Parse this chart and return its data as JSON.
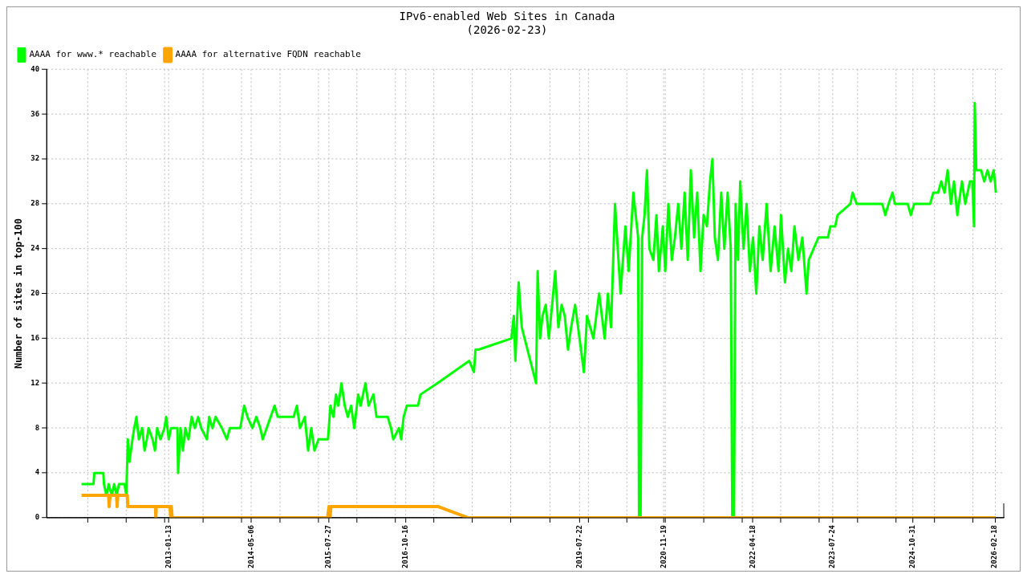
{
  "chart_data": {
    "type": "line",
    "title": "IPv6-enabled Web Sites in Canada",
    "subtitle": "(2026-02-23)",
    "ylabel": "Number of sites in top-100",
    "xlim": [
      "2011-02-06",
      "2026-04-10"
    ],
    "ylim": [
      0,
      40
    ],
    "yticks": [
      0,
      4,
      8,
      12,
      16,
      20,
      24,
      28,
      32,
      36,
      40
    ],
    "xticks": [
      {
        "value": "2011-09-30",
        "label": null
      },
      {
        "value": "2012-05-10",
        "label": null
      },
      {
        "value": "2012-12-19",
        "label": null
      },
      {
        "value": "2013-01-13",
        "label": "2013-01-13"
      },
      {
        "value": "2013-07-30",
        "label": null
      },
      {
        "value": "2014-03-10",
        "label": null
      },
      {
        "value": "2014-05-06",
        "label": "2014-05-06"
      },
      {
        "value": "2014-10-19",
        "label": null
      },
      {
        "value": "2015-05-30",
        "label": null
      },
      {
        "value": "2015-07-27",
        "label": "2015-07-27"
      },
      {
        "value": "2016-01-08",
        "label": null
      },
      {
        "value": "2016-08-18",
        "label": null
      },
      {
        "value": "2016-10-16",
        "label": "2016-10-16"
      },
      {
        "value": "2017-03-29",
        "label": null
      },
      {
        "value": "2017-11-07",
        "label": null
      },
      {
        "value": "2018-06-18",
        "label": null
      },
      {
        "value": "2019-01-27",
        "label": null
      },
      {
        "value": "2019-07-22",
        "label": "2019-07-22"
      },
      {
        "value": "2019-09-07",
        "label": null
      },
      {
        "value": "2020-04-17",
        "label": null
      },
      {
        "value": "2020-11-19",
        "label": "2020-11-19"
      },
      {
        "value": "2020-11-26",
        "label": null
      },
      {
        "value": "2021-07-07",
        "label": null
      },
      {
        "value": "2022-02-15",
        "label": null
      },
      {
        "value": "2022-04-18",
        "label": "2022-04-18"
      },
      {
        "value": "2022-09-26",
        "label": null
      },
      {
        "value": "2023-05-07",
        "label": null
      },
      {
        "value": "2023-07-24",
        "label": "2023-07-24"
      },
      {
        "value": "2023-12-16",
        "label": null
      },
      {
        "value": "2024-07-26",
        "label": null
      },
      {
        "value": "2024-10-31",
        "label": "2024-10-31"
      },
      {
        "value": "2025-03-06",
        "label": null
      },
      {
        "value": "2025-10-15",
        "label": null
      },
      {
        "value": "2026-02-18",
        "label": "2026-02-18"
      }
    ],
    "grid": true,
    "legend": "top left",
    "series": [
      {
        "name": "AAAA for www.* reachable",
        "color": "#00ff00",
        "x": [
          "2011-08-27",
          "2011-11-04",
          "2011-11-09",
          "2011-12-31",
          "2012-01-04",
          "2012-01-18",
          "2012-01-31",
          "2012-02-18",
          "2012-03-03",
          "2012-03-17",
          "2012-03-31",
          "2012-05-02",
          "2012-05-12",
          "2012-05-21",
          "2012-05-30",
          "2012-06-17",
          "2012-06-27",
          "2012-07-10",
          "2012-07-24",
          "2012-08-12",
          "2012-08-26",
          "2012-09-08",
          "2012-09-18",
          "2012-10-11",
          "2012-10-25",
          "2012-11-07",
          "2012-11-26",
          "2012-12-19",
          "2012-12-29",
          "2013-01-13",
          "2013-01-26",
          "2013-03-04",
          "2013-03-08",
          "2013-03-22",
          "2013-04-05",
          "2013-04-19",
          "2013-05-07",
          "2013-05-26",
          "2013-06-13",
          "2013-07-02",
          "2013-07-20",
          "2013-08-22",
          "2013-09-04",
          "2013-09-23",
          "2013-10-11",
          "2013-11-17",
          "2013-12-15",
          "2014-01-02",
          "2014-03-03",
          "2014-03-26",
          "2014-04-14",
          "2014-05-12",
          "2014-06-04",
          "2014-06-27",
          "2014-07-11",
          "2014-08-03",
          "2014-09-18",
          "2014-10-06",
          "2014-11-12",
          "2015-01-06",
          "2015-01-25",
          "2015-02-12",
          "2015-03-12",
          "2015-03-31",
          "2015-04-18",
          "2015-05-07",
          "2015-05-30",
          "2015-07-24",
          "2015-08-07",
          "2015-08-25",
          "2015-09-08",
          "2015-09-22",
          "2015-10-10",
          "2015-10-29",
          "2015-11-16",
          "2015-12-05",
          "2015-12-23",
          "2016-01-15",
          "2016-01-29",
          "2016-02-26",
          "2016-03-15",
          "2016-04-12",
          "2016-04-30",
          "2016-05-28",
          "2016-07-04",
          "2016-07-23",
          "2016-08-05",
          "2016-09-07",
          "2016-09-20",
          "2016-10-04",
          "2016-10-23",
          "2016-12-26",
          "2017-01-10",
          "2017-04-17",
          "2017-10-19",
          "2017-11-15",
          "2017-11-24",
          "2017-12-12",
          "2018-06-20",
          "2018-07-04",
          "2018-07-13",
          "2018-08-01",
          "2018-08-19",
          "2018-11-10",
          "2018-11-19",
          "2018-12-03",
          "2018-12-17",
          "2019-01-05",
          "2019-01-23",
          "2019-02-11",
          "2019-03-01",
          "2019-03-19",
          "2019-04-07",
          "2019-04-25",
          "2019-05-14",
          "2019-06-01",
          "2019-06-24",
          "2019-08-14",
          "2019-09-01",
          "2019-10-08",
          "2019-11-10",
          "2019-12-12",
          "2019-12-31",
          "2020-01-18",
          "2020-02-10",
          "2020-03-13",
          "2020-03-27",
          "2020-04-10",
          "2020-04-29",
          "2020-05-26",
          "2020-06-23",
          "2020-06-28",
          "2020-07-07",
          "2020-07-16",
          "2020-07-30",
          "2020-08-13",
          "2020-08-27",
          "2020-09-19",
          "2020-10-07",
          "2020-10-21",
          "2020-11-13",
          "2020-11-27",
          "2020-12-15",
          "2021-01-04",
          "2021-01-22",
          "2021-02-10",
          "2021-02-28",
          "2021-03-19",
          "2021-04-06",
          "2021-04-24",
          "2021-05-13",
          "2021-05-31",
          "2021-06-19",
          "2021-07-07",
          "2021-07-26",
          "2021-08-13",
          "2021-08-27",
          "2021-09-10",
          "2021-09-28",
          "2021-10-17",
          "2021-11-04",
          "2021-11-23",
          "2021-12-11",
          "2021-12-20",
          "2021-12-30",
          "2022-01-08",
          "2022-01-22",
          "2022-02-04",
          "2022-02-23",
          "2022-03-13",
          "2022-04-01",
          "2022-04-19",
          "2022-05-08",
          "2022-05-26",
          "2022-06-14",
          "2022-07-07",
          "2022-07-30",
          "2022-08-22",
          "2022-09-14",
          "2022-09-28",
          "2022-10-21",
          "2022-11-08",
          "2022-11-27",
          "2022-12-15",
          "2023-01-07",
          "2023-01-30",
          "2023-02-23",
          "2023-03-08",
          "2023-04-05",
          "2023-05-03",
          "2023-06-27",
          "2023-07-11",
          "2023-08-08",
          "2023-08-22",
          "2023-11-04",
          "2023-11-17",
          "2023-12-10",
          "2024-05-06",
          "2024-05-24",
          "2024-06-12",
          "2024-07-05",
          "2024-07-19",
          "2024-10-01",
          "2024-10-19",
          "2024-11-07",
          "2025-02-08",
          "2025-02-26",
          "2025-03-26",
          "2025-04-13",
          "2025-05-02",
          "2025-05-20",
          "2025-06-08",
          "2025-06-26",
          "2025-07-15",
          "2025-08-11",
          "2025-08-30",
          "2025-09-26",
          "2025-10-10",
          "2025-10-20",
          "2025-10-24",
          "2025-11-02",
          "2025-11-30",
          "2025-12-18",
          "2026-01-06",
          "2026-01-24",
          "2026-02-10",
          "2026-02-18",
          "2026-02-23"
        ],
        "values": [
          3,
          3,
          4,
          4,
          3,
          2,
          3,
          2,
          3,
          2,
          3,
          3,
          2,
          7,
          5,
          7,
          8,
          9,
          7,
          8,
          6,
          7,
          8,
          7,
          6,
          8,
          7,
          8,
          9,
          7,
          8,
          8,
          4,
          8,
          6,
          8,
          7,
          9,
          8,
          9,
          8,
          7,
          9,
          8,
          9,
          8,
          7,
          8,
          8,
          10,
          9,
          8,
          9,
          8,
          7,
          8,
          10,
          9,
          9,
          9,
          10,
          8,
          9,
          6,
          8,
          6,
          7,
          7,
          10,
          9,
          11,
          10,
          12,
          10,
          9,
          10,
          8,
          11,
          10,
          12,
          10,
          11,
          9,
          9,
          9,
          8,
          7,
          8,
          7,
          9,
          10,
          10,
          11,
          12,
          14,
          13,
          15,
          15,
          16,
          18,
          14,
          21,
          17,
          12,
          22,
          16,
          18,
          19,
          16,
          19,
          22,
          17,
          19,
          18,
          15,
          17,
          19,
          13,
          18,
          16,
          20,
          16,
          20,
          17,
          28,
          20,
          23,
          26,
          22,
          29,
          25,
          0,
          0,
          25,
          27,
          31,
          24,
          23,
          27,
          22,
          26,
          22,
          28,
          23,
          25,
          28,
          24,
          29,
          23,
          31,
          25,
          29,
          22,
          27,
          26,
          30,
          32,
          25,
          23,
          29,
          24,
          29,
          24,
          0,
          0,
          28,
          23,
          30,
          24,
          28,
          22,
          25,
          20,
          26,
          23,
          28,
          22,
          26,
          22,
          27,
          21,
          24,
          22,
          26,
          23,
          25,
          20,
          23,
          24,
          25,
          25,
          26,
          26,
          27,
          28,
          29,
          28,
          28,
          27,
          28,
          29,
          28,
          28,
          27,
          28,
          28,
          29,
          29,
          30,
          29,
          31,
          28,
          30,
          27,
          30,
          28,
          30,
          30,
          26,
          37,
          31,
          31,
          30,
          31,
          30,
          31,
          30,
          29
        ]
      },
      {
        "name": "AAAA for alternative FQDN reachable",
        "color": "#ffa500",
        "x": [
          "2011-08-27",
          "2012-01-31",
          "2012-02-03",
          "2012-02-08",
          "2012-03-17",
          "2012-03-20",
          "2012-03-24",
          "2012-05-18",
          "2012-05-21",
          "2012-10-28",
          "2012-10-30",
          "2012-11-02",
          "2013-01-20",
          "2013-01-25",
          "2013-01-28",
          "2013-02-02",
          "2015-07-22",
          "2015-07-30",
          "2015-08-05",
          "2015-08-10",
          "2017-04-23",
          "2017-10-14",
          "2026-02-23"
        ],
        "values": [
          2,
          2,
          1,
          2,
          2,
          1,
          2,
          2,
          1,
          1,
          0,
          1,
          1,
          0,
          1,
          0,
          0,
          1,
          0,
          1,
          1,
          0,
          0
        ]
      }
    ]
  }
}
